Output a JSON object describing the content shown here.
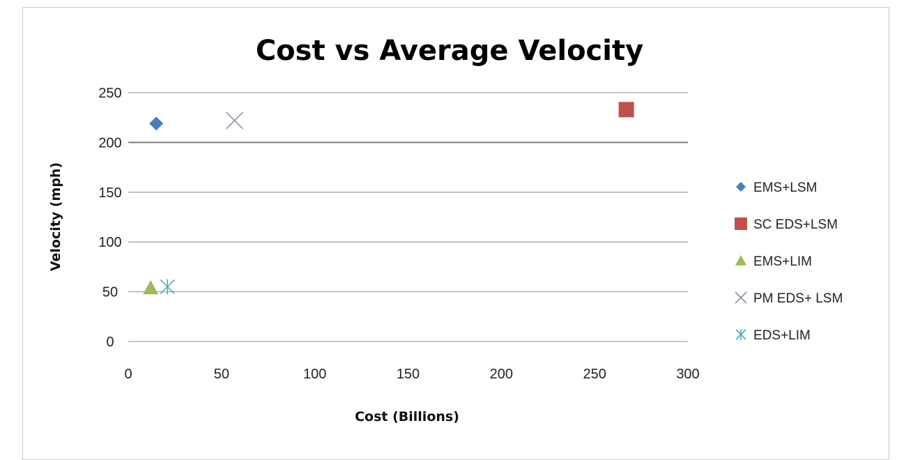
{
  "chart_data": {
    "type": "scatter",
    "title": "Cost vs Average Velocity",
    "xlabel": "Cost (Billions)",
    "ylabel": "Velocity (mph)",
    "xlim": [
      0,
      300
    ],
    "ylim": [
      0,
      250
    ],
    "x_ticks": [
      "0",
      "50",
      "100",
      "150",
      "200",
      "250",
      "300"
    ],
    "y_ticks": [
      "0",
      "50",
      "100",
      "150",
      "200",
      "250"
    ],
    "grid": true,
    "legend_position": "right",
    "series": [
      {
        "name": "EMS+LSM",
        "marker": "diamond",
        "color": "#4a7ebb",
        "points": [
          {
            "x": 15,
            "y": 219
          }
        ]
      },
      {
        "name": "SC EDS+LSM",
        "marker": "square",
        "color": "#c0504d",
        "points": [
          {
            "x": 267,
            "y": 233
          }
        ]
      },
      {
        "name": "EMS+LIM",
        "marker": "triangle",
        "color": "#9bbb59",
        "points": [
          {
            "x": 12,
            "y": 54
          }
        ]
      },
      {
        "name": "PM EDS+ LSM",
        "marker": "x",
        "color": "#8a8fa0",
        "points": [
          {
            "x": 57,
            "y": 222
          }
        ]
      },
      {
        "name": "EDS+LIM",
        "marker": "star",
        "color": "#4bacc6",
        "points": [
          {
            "x": 21,
            "y": 55
          }
        ]
      }
    ]
  }
}
